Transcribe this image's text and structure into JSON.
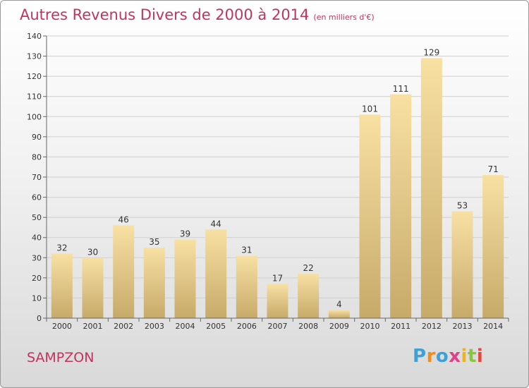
{
  "title": "Autres Revenus Divers de 2000 à 2014",
  "unit": "(en milliers d'€)",
  "commune": "SAMPZON",
  "logo": {
    "letters": [
      "P",
      "r",
      "o",
      "x",
      "i",
      "t",
      "i"
    ],
    "colors": [
      "#3ba1d8",
      "#f18d1c",
      "#3ba1d8",
      "#e23f8a",
      "#f1b31c",
      "#8bc43f",
      "#e2473f"
    ]
  },
  "colors": {
    "accent": "#c0355e",
    "bar_light": "#f8e0a3",
    "bar_dark": "#c6aa6a"
  },
  "chart_data": {
    "type": "bar",
    "title": "Autres Revenus Divers de 2000 à 2014",
    "subtitle": "(en milliers d'€)",
    "xlabel": "",
    "ylabel": "",
    "categories": [
      "2000",
      "2001",
      "2002",
      "2003",
      "2004",
      "2005",
      "2006",
      "2007",
      "2008",
      "2009",
      "2010",
      "2011",
      "2012",
      "2013",
      "2014"
    ],
    "values": [
      32,
      30,
      46,
      35,
      39,
      44,
      31,
      17,
      22,
      4,
      101,
      111,
      129,
      53,
      71
    ],
    "ylim": [
      0,
      140
    ],
    "yticks": [
      0,
      10,
      20,
      30,
      40,
      50,
      60,
      70,
      80,
      90,
      100,
      110,
      120,
      130,
      140
    ],
    "grid": "horizontal",
    "legend": "none"
  }
}
